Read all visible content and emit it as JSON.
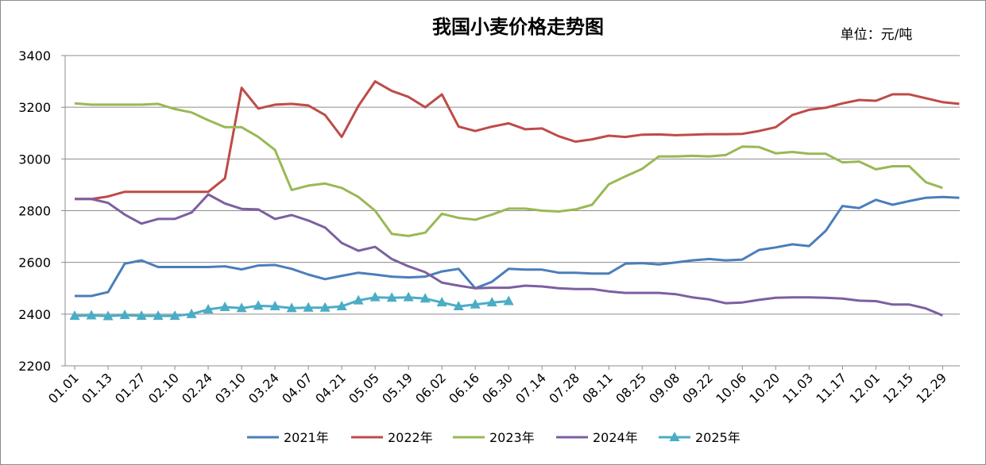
{
  "chart_data": {
    "type": "line",
    "title": "我国小麦价格走势图",
    "unit_label": "单位：元/吨",
    "ylim": [
      2200,
      3400
    ],
    "yticks": [
      2200,
      2400,
      2600,
      2800,
      3000,
      3200,
      3400
    ],
    "x_labels": [
      "01.01",
      "01.13",
      "01.27",
      "02.10",
      "02.24",
      "03.10",
      "03.24",
      "04.07",
      "04.21",
      "05.05",
      "05.19",
      "06.02",
      "06.16",
      "06.30",
      "07.14",
      "07.28",
      "08.11",
      "08.25",
      "09.08",
      "09.22",
      "10.06",
      "10.20",
      "11.03",
      "11.17",
      "12.01",
      "12.15",
      "12.29"
    ],
    "grid": "horizontal",
    "legend_position": "bottom",
    "series": [
      {
        "name": "2021年",
        "color": "#4a7ebb",
        "marker": "none",
        "values": [
          2470,
          2470,
          2485,
          2595,
          2608,
          2582,
          2582,
          2582,
          2582,
          2585,
          2573,
          2588,
          2590,
          2575,
          2553,
          2535,
          2548,
          2560,
          2553,
          2545,
          2542,
          2545,
          2565,
          2575,
          2500,
          2525,
          2575,
          2572,
          2572,
          2560,
          2560,
          2557,
          2557,
          2595,
          2597,
          2592,
          2600,
          2608,
          2613,
          2608,
          2611,
          2648,
          2658,
          2670,
          2663,
          2722,
          2818,
          2810,
          2842,
          2823,
          2837,
          2850,
          2853,
          2850
        ]
      },
      {
        "name": "2022年",
        "color": "#be4b48",
        "marker": "none",
        "values": [
          2845,
          2845,
          2855,
          2873,
          2873,
          2873,
          2873,
          2873,
          2873,
          2925,
          3275,
          3195,
          3210,
          3213,
          3207,
          3170,
          3085,
          3205,
          3300,
          3263,
          3240,
          3200,
          3250,
          3125,
          3108,
          3125,
          3138,
          3115,
          3118,
          3088,
          3067,
          3076,
          3090,
          3085,
          3094,
          3095,
          3092,
          3094,
          3096,
          3096,
          3097,
          3108,
          3123,
          3170,
          3190,
          3198,
          3215,
          3228,
          3225,
          3250,
          3250,
          3235,
          3220,
          3213
        ]
      },
      {
        "name": "2023年",
        "color": "#98b954",
        "marker": "none",
        "values": [
          3215,
          3210,
          3210,
          3210,
          3210,
          3213,
          3193,
          3180,
          3150,
          3123,
          3123,
          3085,
          3035,
          2880,
          2897,
          2905,
          2888,
          2853,
          2800,
          2710,
          2702,
          2715,
          2788,
          2772,
          2765,
          2785,
          2808,
          2808,
          2800,
          2797,
          2805,
          2823,
          2902,
          2933,
          2962,
          3010,
          3010,
          3012,
          3010,
          3015,
          3048,
          3046,
          3022,
          3027,
          3020,
          3020,
          2987,
          2990,
          2960,
          2972,
          2972,
          2910,
          2888
        ]
      },
      {
        "name": "2024年",
        "color": "#7d5fa0",
        "marker": "none",
        "values": [
          2845,
          2845,
          2830,
          2785,
          2750,
          2768,
          2768,
          2793,
          2863,
          2828,
          2807,
          2805,
          2768,
          2783,
          2762,
          2735,
          2675,
          2645,
          2660,
          2613,
          2585,
          2562,
          2522,
          2510,
          2500,
          2502,
          2502,
          2510,
          2507,
          2500,
          2497,
          2497,
          2488,
          2482,
          2482,
          2482,
          2477,
          2465,
          2457,
          2442,
          2445,
          2455,
          2463,
          2465,
          2465,
          2463,
          2460,
          2452,
          2450,
          2437,
          2437,
          2422,
          2395
        ]
      },
      {
        "name": "2025年",
        "color": "#4bacc6",
        "marker": "triangle",
        "values": [
          2393,
          2395,
          2392,
          2396,
          2393,
          2393,
          2393,
          2400,
          2418,
          2427,
          2423,
          2432,
          2430,
          2423,
          2425,
          2425,
          2430,
          2453,
          2465,
          2463,
          2465,
          2460,
          2445,
          2430,
          2437,
          2445,
          2450
        ]
      }
    ]
  }
}
